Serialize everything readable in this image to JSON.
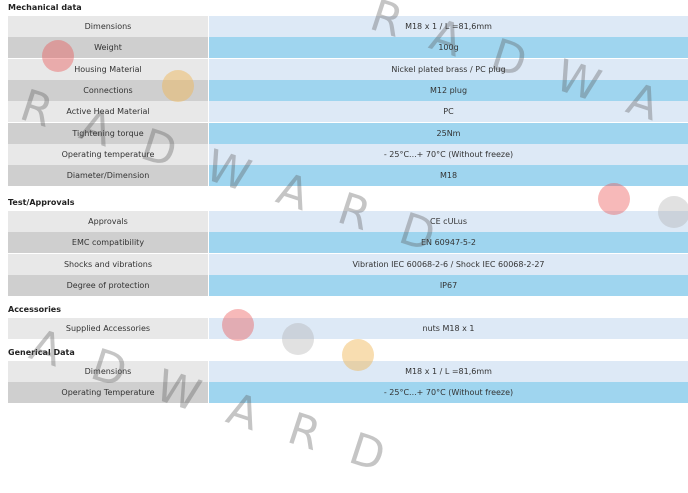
{
  "watermark": "RADWARD",
  "sections": [
    {
      "title": "Mechanical data",
      "rows": [
        [
          "Dimensions",
          "M18 x 1 / L =81,6mm"
        ],
        [
          "Weight",
          "100g"
        ],
        [
          "Housing Material",
          "Nickel plated brass / PC plug"
        ],
        [
          "Connections",
          "M12 plug"
        ],
        [
          "Active Head Material",
          "PC"
        ],
        [
          "Tightening torque",
          "25Nm"
        ],
        [
          "Operating temperature",
          "- 25°C...+ 70°C (Without freeze)"
        ],
        [
          "Diameter/Dimension",
          "M18"
        ]
      ]
    },
    {
      "title": "Test/Approvals",
      "rows": [
        [
          "Approvals",
          "CE cULus"
        ],
        [
          "EMC compatibility",
          "EN 60947-5-2"
        ],
        [
          "Shocks and vibrations",
          "Vibration IEC 60068-2-6 / Shock IEC 60068-2-27"
        ],
        [
          "Degree of protection",
          "IP67"
        ]
      ]
    },
    {
      "title": "Accessories",
      "rows": [
        [
          "Supplied Accessories",
          "nuts M18 x 1"
        ]
      ]
    },
    {
      "title": "Generical Data",
      "rows": [
        [
          "Dimensions",
          "M18 x 1 / L =81,6mm"
        ],
        [
          "Operating Temperature",
          "- 25°C...+ 70°C (Without freeze)"
        ]
      ]
    }
  ]
}
